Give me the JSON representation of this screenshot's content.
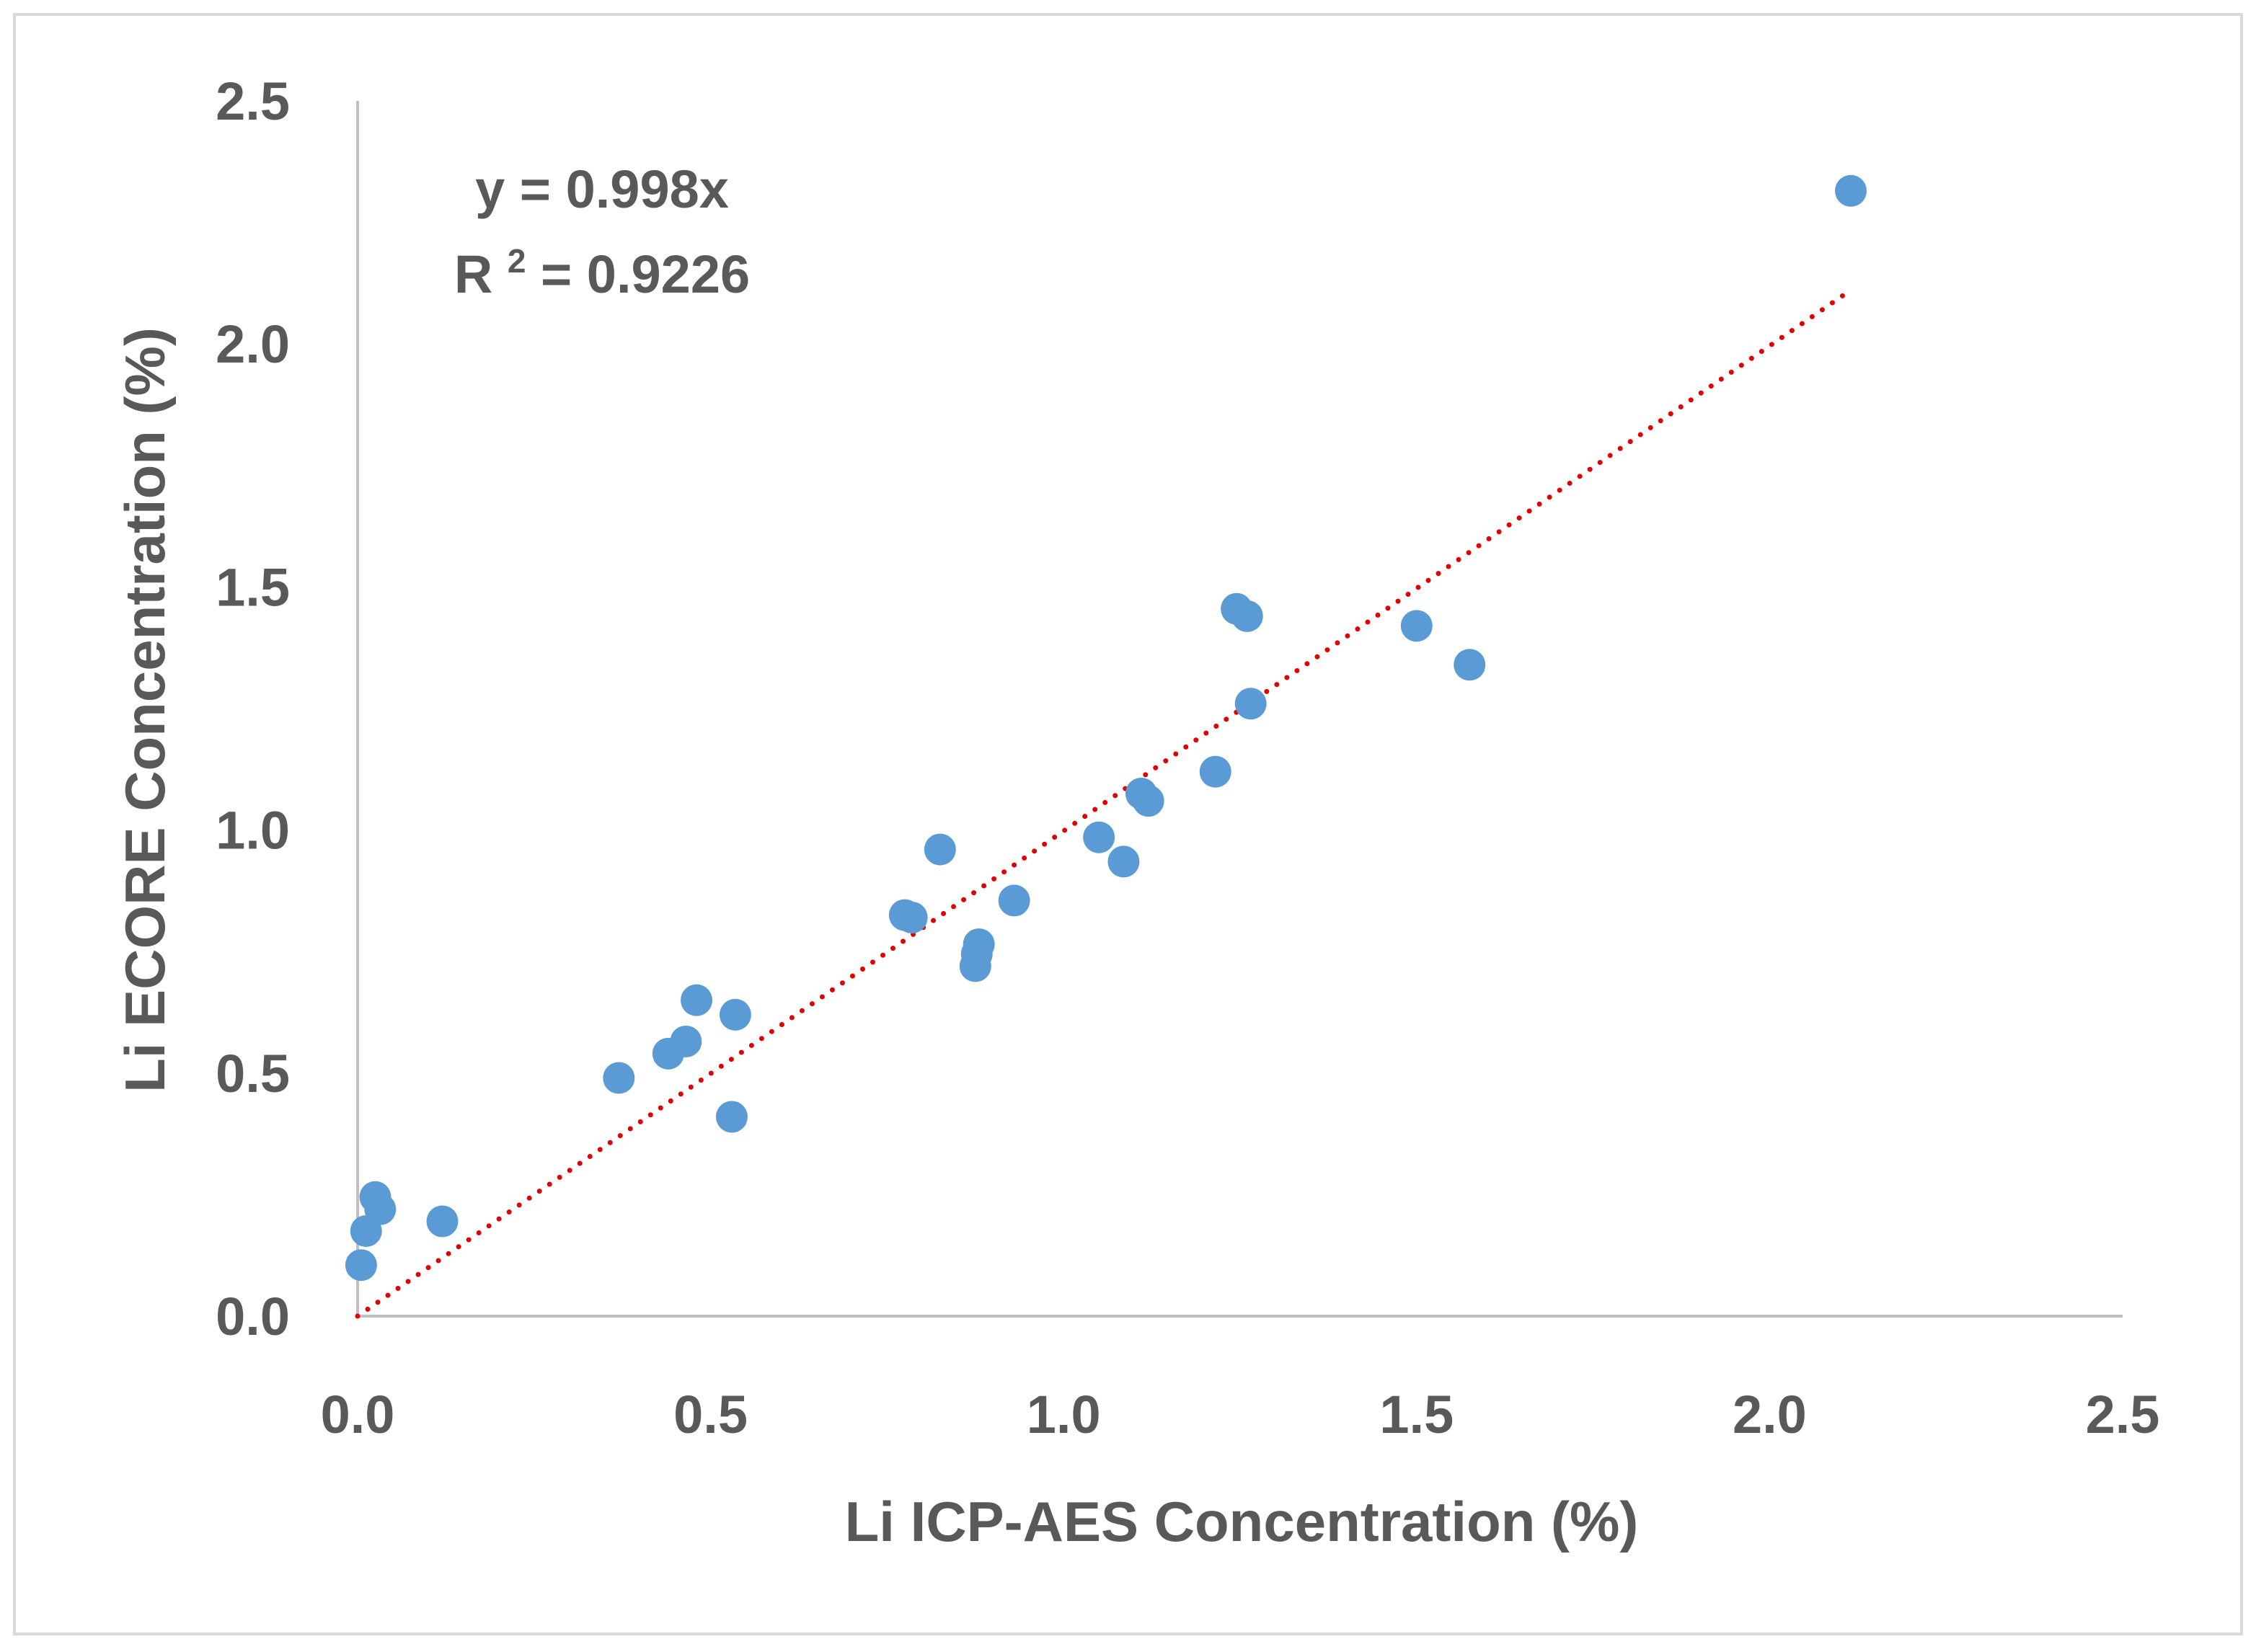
{
  "chart_data": {
    "type": "scatter",
    "title": "",
    "xlabel": "Li ICP-AES Concentration (%)",
    "ylabel": "Li ECORE Concentration (%)",
    "xlim": [
      0,
      2.5
    ],
    "ylim": [
      0,
      2.5
    ],
    "xticks": [
      "0.0",
      "0.5",
      "1.0",
      "1.5",
      "2.0",
      "2.5"
    ],
    "yticks": [
      "0.0",
      "0.5",
      "1.0",
      "1.5",
      "2.0",
      "2.5"
    ],
    "grid": false,
    "series": [
      {
        "name": "Samples",
        "color": "#5b9bd5",
        "points": [
          {
            "x": 0.005,
            "y": 0.105
          },
          {
            "x": 0.012,
            "y": 0.175
          },
          {
            "x": 0.025,
            "y": 0.245
          },
          {
            "x": 0.032,
            "y": 0.22
          },
          {
            "x": 0.12,
            "y": 0.195
          },
          {
            "x": 0.37,
            "y": 0.49
          },
          {
            "x": 0.44,
            "y": 0.54
          },
          {
            "x": 0.465,
            "y": 0.565
          },
          {
            "x": 0.48,
            "y": 0.65
          },
          {
            "x": 0.53,
            "y": 0.41
          },
          {
            "x": 0.535,
            "y": 0.62
          },
          {
            "x": 0.775,
            "y": 0.825
          },
          {
            "x": 0.785,
            "y": 0.82
          },
          {
            "x": 0.825,
            "y": 0.96
          },
          {
            "x": 0.875,
            "y": 0.72
          },
          {
            "x": 0.877,
            "y": 0.745
          },
          {
            "x": 0.88,
            "y": 0.765
          },
          {
            "x": 0.93,
            "y": 0.855
          },
          {
            "x": 1.05,
            "y": 0.985
          },
          {
            "x": 1.085,
            "y": 0.935
          },
          {
            "x": 1.11,
            "y": 1.075
          },
          {
            "x": 1.12,
            "y": 1.06
          },
          {
            "x": 1.215,
            "y": 1.12
          },
          {
            "x": 1.245,
            "y": 1.455
          },
          {
            "x": 1.26,
            "y": 1.44
          },
          {
            "x": 1.265,
            "y": 1.26
          },
          {
            "x": 1.5,
            "y": 1.42
          },
          {
            "x": 1.575,
            "y": 1.34
          },
          {
            "x": 2.115,
            "y": 2.315
          }
        ]
      }
    ],
    "trendline": {
      "slope": 0.998,
      "x_range": [
        0,
        2.115
      ],
      "color": "#e00000",
      "style": "dotted"
    },
    "annotations": {
      "equation": "y = 0.998x",
      "r2_label": "R",
      "r2_superscript": "2",
      "r2_value": " = 0.9226"
    }
  }
}
